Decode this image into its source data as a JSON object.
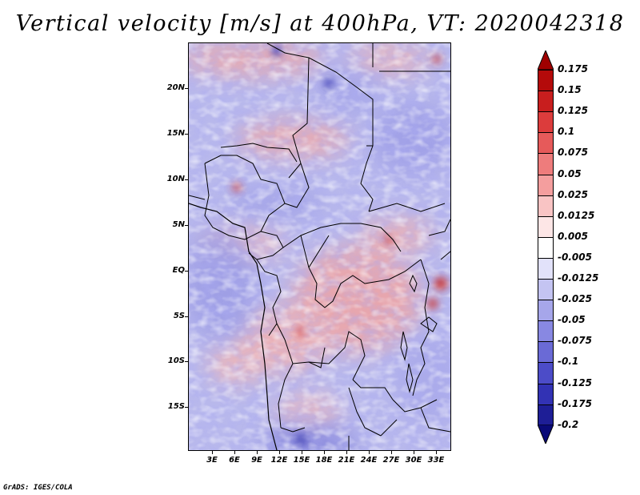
{
  "title": "Vertical velocity [m/s] at 400hPa, VT: 2020042318",
  "map": {
    "lat_labels": [
      "20N",
      "15N",
      "10N",
      "5N",
      "EQ",
      "5S",
      "10S",
      "15S"
    ],
    "lon_labels": [
      "3E",
      "6E",
      "9E",
      "12E",
      "15E",
      "18E",
      "21E",
      "24E",
      "27E",
      "30E",
      "33E"
    ]
  },
  "colorbar": {
    "levels": [
      "0.175",
      "0.15",
      "0.125",
      "0.1",
      "0.075",
      "0.05",
      "0.025",
      "0.0125",
      "0.005",
      "-0.005",
      "-0.0125",
      "-0.025",
      "-0.05",
      "-0.075",
      "-0.1",
      "-0.125",
      "-0.175",
      "-0.2"
    ],
    "colors": [
      "#a00000",
      "#b40a0a",
      "#c81e1e",
      "#dc3c3c",
      "#e65a5a",
      "#ee7c7c",
      "#f49e9e",
      "#f9c4c4",
      "#fde6e6",
      "#ffffff",
      "#e2e2fa",
      "#c4c4f2",
      "#a6a6ea",
      "#8888e2",
      "#6a6ad6",
      "#4c4cc8",
      "#3232b4",
      "#1e1e96",
      "#0a0a78"
    ]
  },
  "footer": "GrADS: IGES/COLA"
}
